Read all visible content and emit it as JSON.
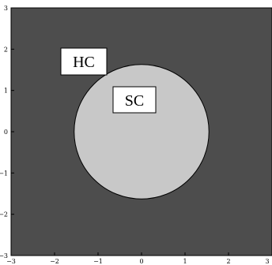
{
  "colors": {
    "background_region": "#4d4d4d",
    "circle_fill": "#c8c8c8",
    "axis": "#000000",
    "label_box": "#ffffff"
  },
  "plot": {
    "xlim": [
      -3,
      3
    ],
    "ylim": [
      -3,
      3
    ],
    "x_ticks": [
      "−3",
      "−2",
      "−1",
      "0",
      "1",
      "2",
      "3"
    ],
    "y_ticks": [
      "3",
      "2",
      "1",
      "0",
      "−1",
      "−2",
      "−3"
    ]
  },
  "circle": {
    "center": [
      0,
      0
    ],
    "radius": 1.55
  },
  "labels": {
    "outer_region": "HC",
    "inner_region": "SC"
  }
}
